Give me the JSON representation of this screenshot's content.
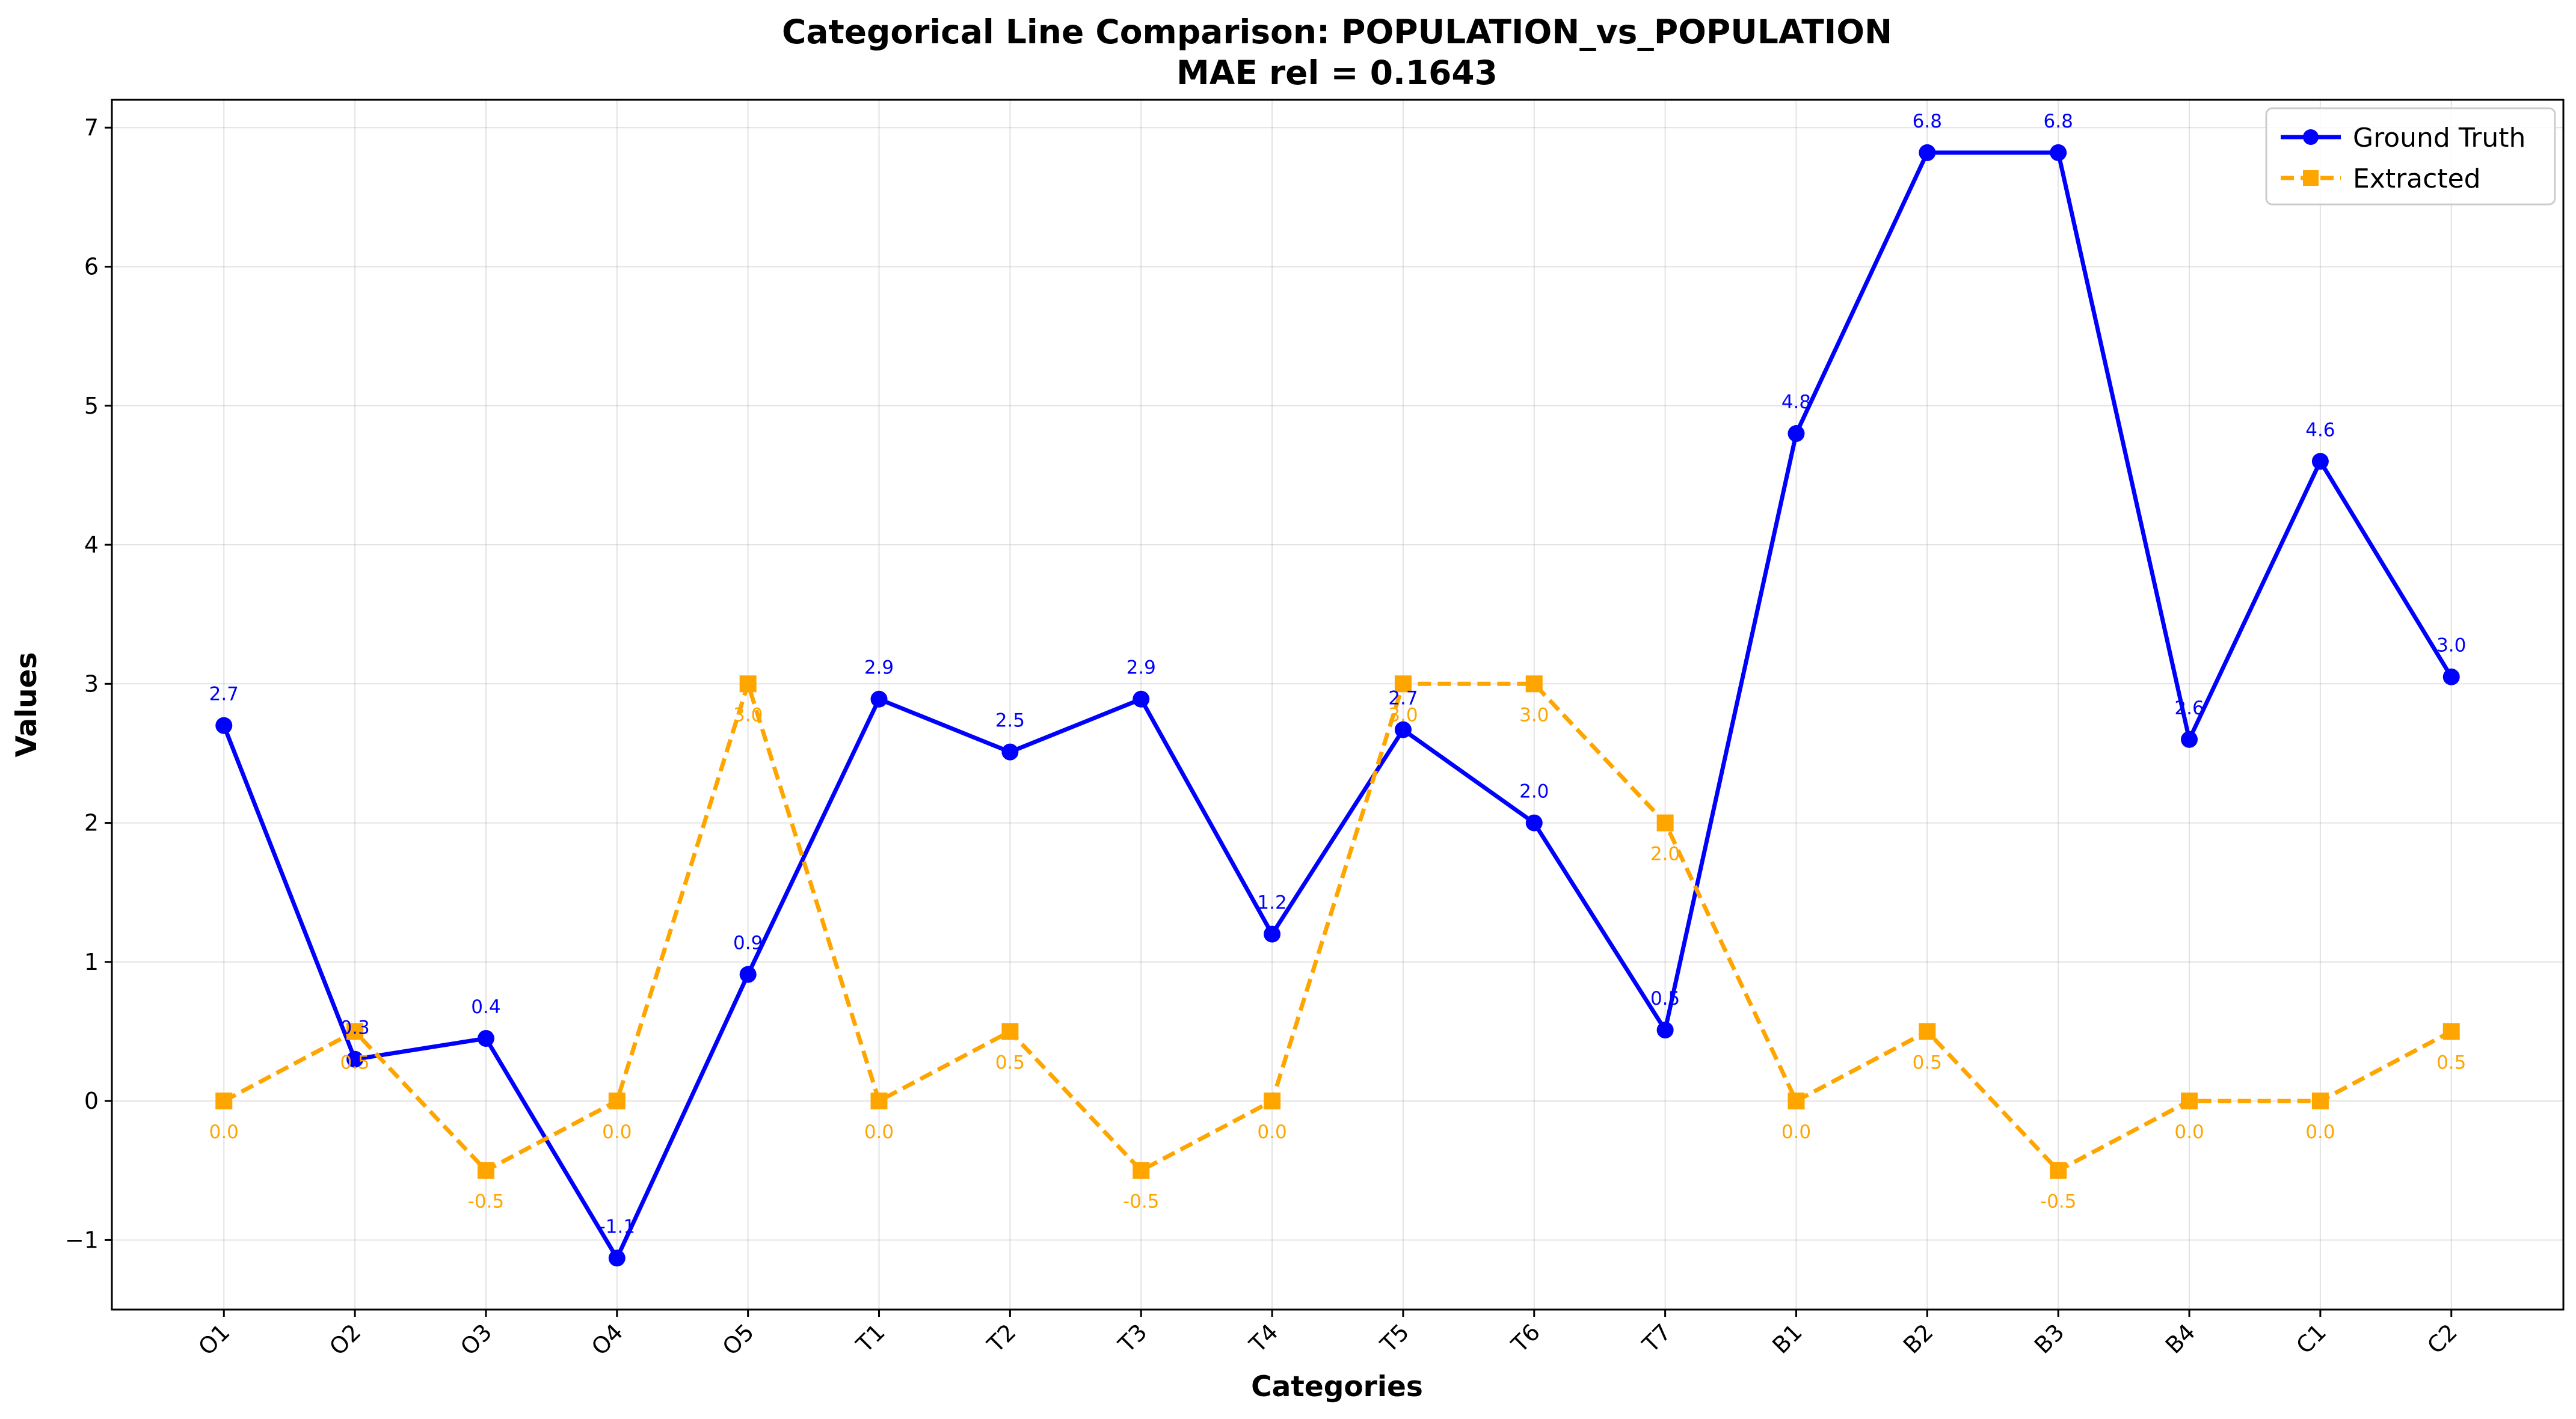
{
  "chart_data": {
    "type": "line",
    "title": "Categorical Line Comparison: POPULATION_vs_POPULATION",
    "subtitle": "MAE rel = 0.1643",
    "xlabel": "Categories",
    "ylabel": "Values",
    "categories": [
      "O1",
      "O2",
      "O3",
      "O4",
      "O5",
      "T1",
      "T2",
      "T3",
      "T4",
      "T5",
      "T6",
      "T7",
      "B1",
      "B2",
      "B3",
      "B4",
      "C1",
      "C2"
    ],
    "ylim": [
      -1.5,
      7.2
    ],
    "yticks": [
      -1,
      0,
      1,
      2,
      3,
      4,
      5,
      6,
      7
    ],
    "ytick_labels": [
      "−1",
      "0",
      "1",
      "2",
      "3",
      "4",
      "5",
      "6",
      "7"
    ],
    "grid": true,
    "legend_position": "top-right",
    "series": [
      {
        "name": "Ground Truth",
        "color": "#0000ff",
        "line_style": "solid",
        "marker": "circle",
        "values": [
          2.7,
          0.3,
          0.45,
          -1.13,
          0.91,
          2.89,
          2.51,
          2.89,
          1.2,
          2.67,
          2.0,
          0.51,
          4.8,
          6.82,
          6.82,
          2.6,
          4.6,
          3.05
        ],
        "labels": [
          "2.7",
          "0.3",
          "0.4",
          "-1.1",
          "0.9",
          "2.9",
          "2.5",
          "2.9",
          "1.2",
          "2.7",
          "2.0",
          "0.5",
          "4.8",
          "6.8",
          "6.8",
          "2.6",
          "4.6",
          "3.0"
        ]
      },
      {
        "name": "Extracted",
        "color": "#ffa500",
        "line_style": "dashed",
        "marker": "square",
        "values": [
          0.0,
          0.5,
          -0.5,
          0.0,
          3.0,
          0.0,
          0.5,
          -0.5,
          0.0,
          3.0,
          3.0,
          2.0,
          0.0,
          0.5,
          -0.5,
          0.0,
          0.0,
          0.5
        ],
        "labels": [
          "0.0",
          "0.5",
          "-0.5",
          "0.0",
          "3.0",
          "0.0",
          "0.5",
          "-0.5",
          "0.0",
          "3.0",
          "3.0",
          "2.0",
          "0.0",
          "0.5",
          "-0.5",
          "0.0",
          "0.0",
          "0.5"
        ]
      }
    ]
  }
}
